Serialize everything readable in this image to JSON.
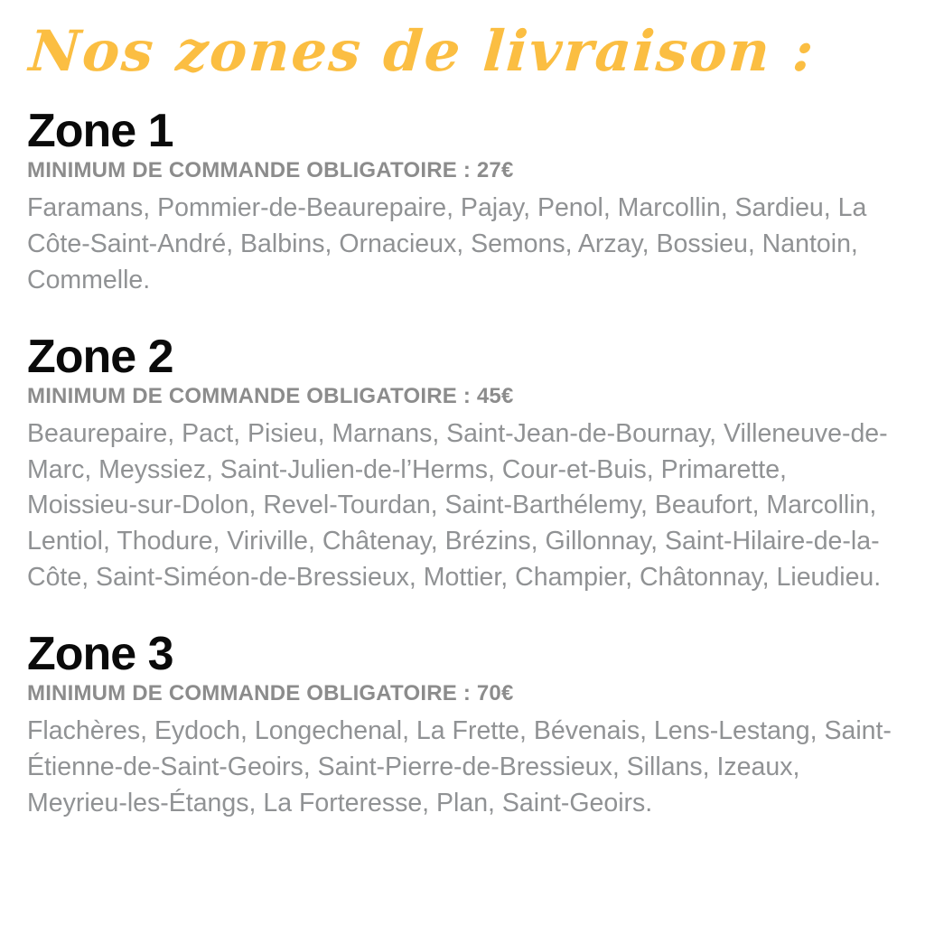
{
  "page": {
    "title": "Nos zones de livraison :"
  },
  "colors": {
    "accent_yellow": "#FBBE42",
    "heading_black": "#0a0a0a",
    "minimum_gray": "#8C8C8C",
    "towns_gray": "#909294",
    "background": "#ffffff"
  },
  "zones": [
    {
      "name": "Zone 1",
      "minimum": "MINIMUM DE COMMANDE OBLIGATOIRE : 27€",
      "minimum_amount": "27€",
      "towns": "Faramans, Pommier-de-Beaurepaire, Pajay, Penol, Marcollin, Sardieu, La Côte-Saint-André, Balbins, Ornacieux, Semons, Arzay, Bossieu, Nantoin, Commelle."
    },
    {
      "name": "Zone 2",
      "minimum": "MINIMUM DE COMMANDE OBLIGATOIRE : 45€",
      "minimum_amount": "45€",
      "towns": "Beaurepaire, Pact, Pisieu, Marnans, Saint-Jean-de-Bournay, Villeneuve-de-Marc, Meyssiez, Saint-Julien-de-l’Herms, Cour-et-Buis, Primarette, Moissieu-sur-Dolon, Revel-Tourdan, Saint-Barthélemy, Beaufort, Marcollin, Lentiol, Thodure, Viriville, Châtenay, Brézins, Gillonnay, Saint-Hilaire-de-la-Côte, Saint-Siméon-de-Bressieux, Mottier, Champier, Châtonnay, Lieudieu."
    },
    {
      "name": "Zone 3",
      "minimum": "MINIMUM DE COMMANDE OBLIGATOIRE : 70€",
      "minimum_amount": "70€",
      "towns": "Flachères, Eydoch, Longechenal, La Frette, Bévenais, Lens-Lestang, Saint-Étienne-de-Saint-Geoirs, Saint-Pierre-de-Bressieux, Sillans, Izeaux, Meyrieu-les-Étangs, La Forteresse, Plan, Saint-Geoirs."
    }
  ]
}
